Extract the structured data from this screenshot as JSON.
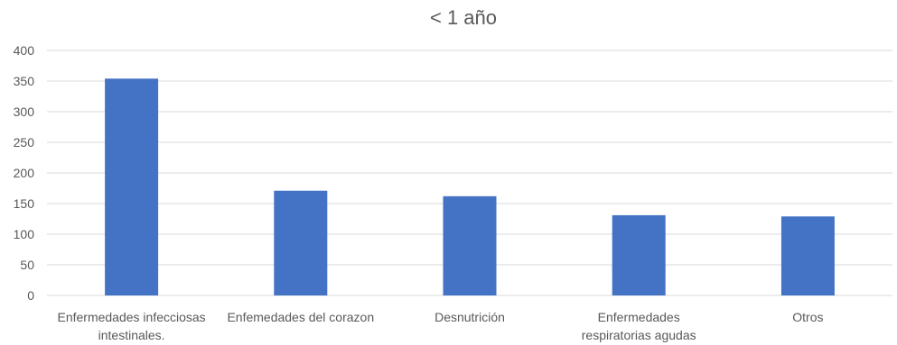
{
  "chart_data": {
    "type": "bar",
    "title": "< 1 año",
    "xlabel": "",
    "ylabel": "",
    "categories": [
      [
        "Enfermedades infecciosas",
        "intestinales."
      ],
      [
        "Enfemedades del corazon"
      ],
      [
        "Desnutrición"
      ],
      [
        "Enfermedades",
        "respiratorias agudas"
      ],
      [
        "Otros"
      ]
    ],
    "values": [
      354,
      171,
      162,
      131,
      129
    ],
    "ylim": [
      0,
      400
    ],
    "yticks": [
      0,
      50,
      100,
      150,
      200,
      250,
      300,
      350,
      400
    ],
    "grid": true,
    "legend": "none",
    "bar_color": "#4472C4",
    "grid_color": "#D9D9D9",
    "text_color": "#595959"
  }
}
